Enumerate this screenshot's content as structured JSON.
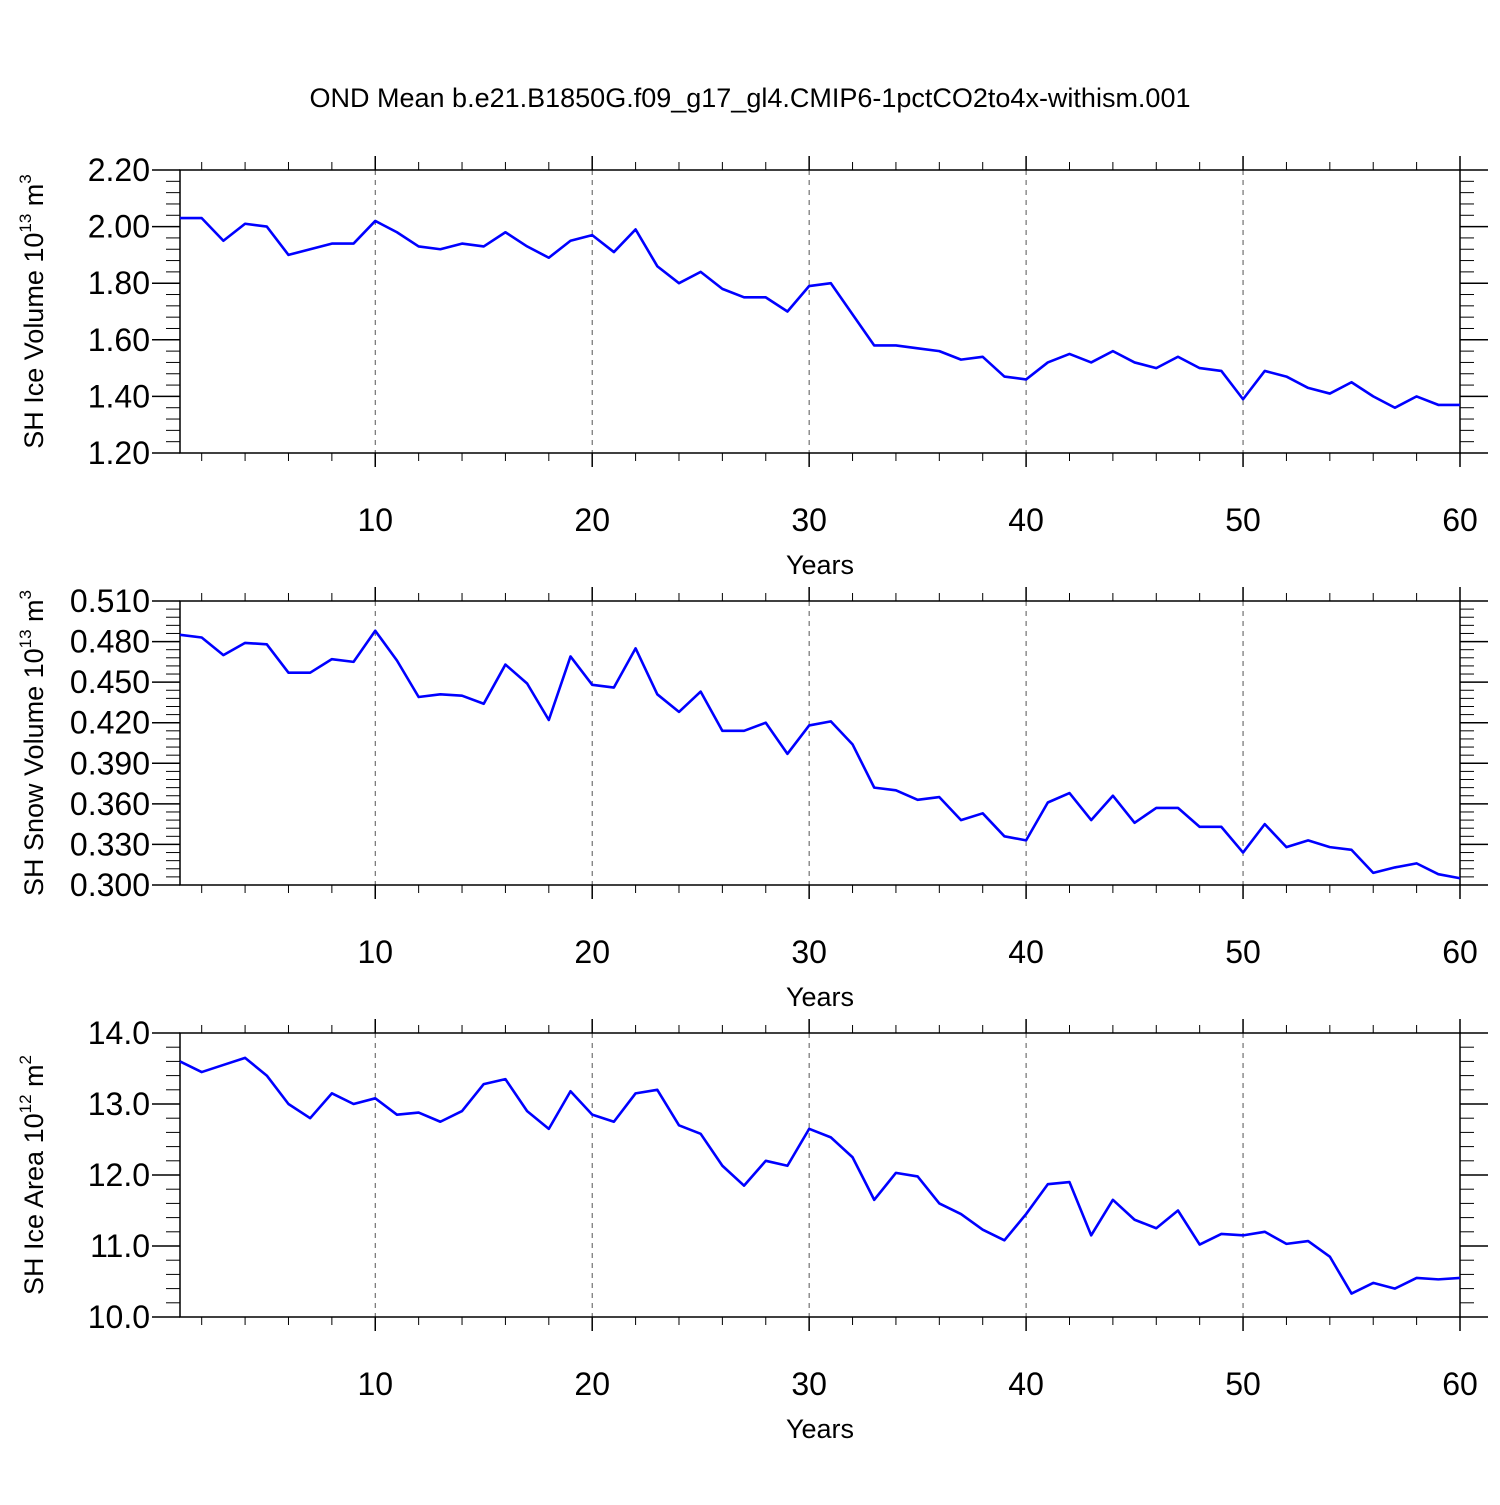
{
  "title": "OND Mean b.e21.B1850G.f09_g17_gl4.CMIP6-1pctCO2to4x-withism.001",
  "colors": {
    "series": "#0000ff",
    "grid": "#555555",
    "axis": "#000000"
  },
  "chart_data": [
    {
      "type": "line",
      "ylabel": "SH Ice Volume 10",
      "ylabel_exponent": "13",
      "ylabel_unit": "m",
      "ylabel_unit_exponent": "3",
      "xlabel": "Years",
      "xlim": [
        1,
        60
      ],
      "ylim": [
        1.2,
        2.2
      ],
      "x_ticks": [
        10,
        20,
        30,
        40,
        50,
        60
      ],
      "y_ticks": [
        "1.20",
        "1.40",
        "1.60",
        "1.80",
        "2.00",
        "2.20"
      ],
      "grid": "vertical dashed at x ticks",
      "x": [
        1,
        2,
        3,
        4,
        5,
        6,
        7,
        8,
        9,
        10,
        11,
        12,
        13,
        14,
        15,
        16,
        17,
        18,
        19,
        20,
        21,
        22,
        23,
        24,
        25,
        26,
        27,
        28,
        29,
        30,
        31,
        32,
        33,
        34,
        35,
        36,
        37,
        38,
        39,
        40,
        41,
        42,
        43,
        44,
        45,
        46,
        47,
        48,
        49,
        50,
        51,
        52,
        53,
        54,
        55,
        56,
        57,
        58,
        59,
        60
      ],
      "values": [
        2.03,
        2.03,
        1.95,
        2.01,
        2.0,
        1.9,
        1.92,
        1.94,
        1.94,
        2.02,
        1.98,
        1.93,
        1.92,
        1.94,
        1.93,
        1.98,
        1.93,
        1.89,
        1.95,
        1.97,
        1.91,
        1.99,
        1.86,
        1.8,
        1.84,
        1.78,
        1.75,
        1.75,
        1.7,
        1.79,
        1.8,
        1.69,
        1.58,
        1.58,
        1.57,
        1.56,
        1.53,
        1.54,
        1.47,
        1.46,
        1.52,
        1.55,
        1.52,
        1.56,
        1.52,
        1.5,
        1.54,
        1.5,
        1.49,
        1.39,
        1.49,
        1.47,
        1.43,
        1.41,
        1.45,
        1.4,
        1.36,
        1.4,
        1.37,
        1.37
      ]
    },
    {
      "type": "line",
      "ylabel": "SH Snow Volume 10",
      "ylabel_exponent": "13",
      "ylabel_unit": "m",
      "ylabel_unit_exponent": "3",
      "xlabel": "Years",
      "xlim": [
        1,
        60
      ],
      "ylim": [
        0.3,
        0.51
      ],
      "x_ticks": [
        10,
        20,
        30,
        40,
        50,
        60
      ],
      "y_ticks": [
        "0.300",
        "0.330",
        "0.360",
        "0.390",
        "0.420",
        "0.450",
        "0.480",
        "0.510"
      ],
      "grid": "vertical dashed at x ticks",
      "x": [
        1,
        2,
        3,
        4,
        5,
        6,
        7,
        8,
        9,
        10,
        11,
        12,
        13,
        14,
        15,
        16,
        17,
        18,
        19,
        20,
        21,
        22,
        23,
        24,
        25,
        26,
        27,
        28,
        29,
        30,
        31,
        32,
        33,
        34,
        35,
        36,
        37,
        38,
        39,
        40,
        41,
        42,
        43,
        44,
        45,
        46,
        47,
        48,
        49,
        50,
        51,
        52,
        53,
        54,
        55,
        56,
        57,
        58,
        59,
        60
      ],
      "values": [
        0.485,
        0.483,
        0.47,
        0.479,
        0.478,
        0.457,
        0.457,
        0.467,
        0.465,
        0.488,
        0.466,
        0.439,
        0.441,
        0.44,
        0.434,
        0.463,
        0.449,
        0.422,
        0.469,
        0.448,
        0.446,
        0.475,
        0.441,
        0.428,
        0.443,
        0.414,
        0.414,
        0.42,
        0.397,
        0.418,
        0.421,
        0.404,
        0.372,
        0.37,
        0.363,
        0.365,
        0.348,
        0.353,
        0.336,
        0.333,
        0.361,
        0.368,
        0.348,
        0.366,
        0.346,
        0.357,
        0.357,
        0.343,
        0.343,
        0.324,
        0.345,
        0.328,
        0.333,
        0.328,
        0.326,
        0.309,
        0.313,
        0.316,
        0.308,
        0.305
      ]
    },
    {
      "type": "line",
      "ylabel": "SH Ice Area 10",
      "ylabel_exponent": "12",
      "ylabel_unit": "m",
      "ylabel_unit_exponent": "2",
      "xlabel": "Years",
      "xlim": [
        1,
        60
      ],
      "ylim": [
        10.0,
        14.0
      ],
      "x_ticks": [
        10,
        20,
        30,
        40,
        50,
        60
      ],
      "y_ticks": [
        "10.0",
        "11.0",
        "12.0",
        "13.0",
        "14.0"
      ],
      "grid": "vertical dashed at x ticks",
      "x": [
        1,
        2,
        3,
        4,
        5,
        6,
        7,
        8,
        9,
        10,
        11,
        12,
        13,
        14,
        15,
        16,
        17,
        18,
        19,
        20,
        21,
        22,
        23,
        24,
        25,
        26,
        27,
        28,
        29,
        30,
        31,
        32,
        33,
        34,
        35,
        36,
        37,
        38,
        39,
        40,
        41,
        42,
        43,
        44,
        45,
        46,
        47,
        48,
        49,
        50,
        51,
        52,
        53,
        54,
        55,
        56,
        57,
        58,
        59,
        60
      ],
      "values": [
        13.6,
        13.45,
        13.55,
        13.65,
        13.4,
        13.0,
        12.8,
        13.15,
        13.0,
        13.08,
        12.85,
        12.88,
        12.75,
        12.9,
        13.28,
        13.35,
        12.9,
        12.65,
        13.18,
        12.85,
        12.75,
        13.15,
        13.2,
        12.7,
        12.58,
        12.13,
        11.85,
        12.2,
        12.13,
        12.65,
        12.53,
        12.25,
        11.65,
        12.03,
        11.98,
        11.6,
        11.45,
        11.23,
        11.08,
        11.45,
        11.87,
        11.9,
        11.15,
        11.65,
        11.37,
        11.25,
        11.5,
        11.02,
        11.17,
        11.15,
        11.2,
        11.03,
        11.07,
        10.85,
        10.33,
        10.48,
        10.4,
        10.55,
        10.53,
        10.55
      ]
    }
  ]
}
